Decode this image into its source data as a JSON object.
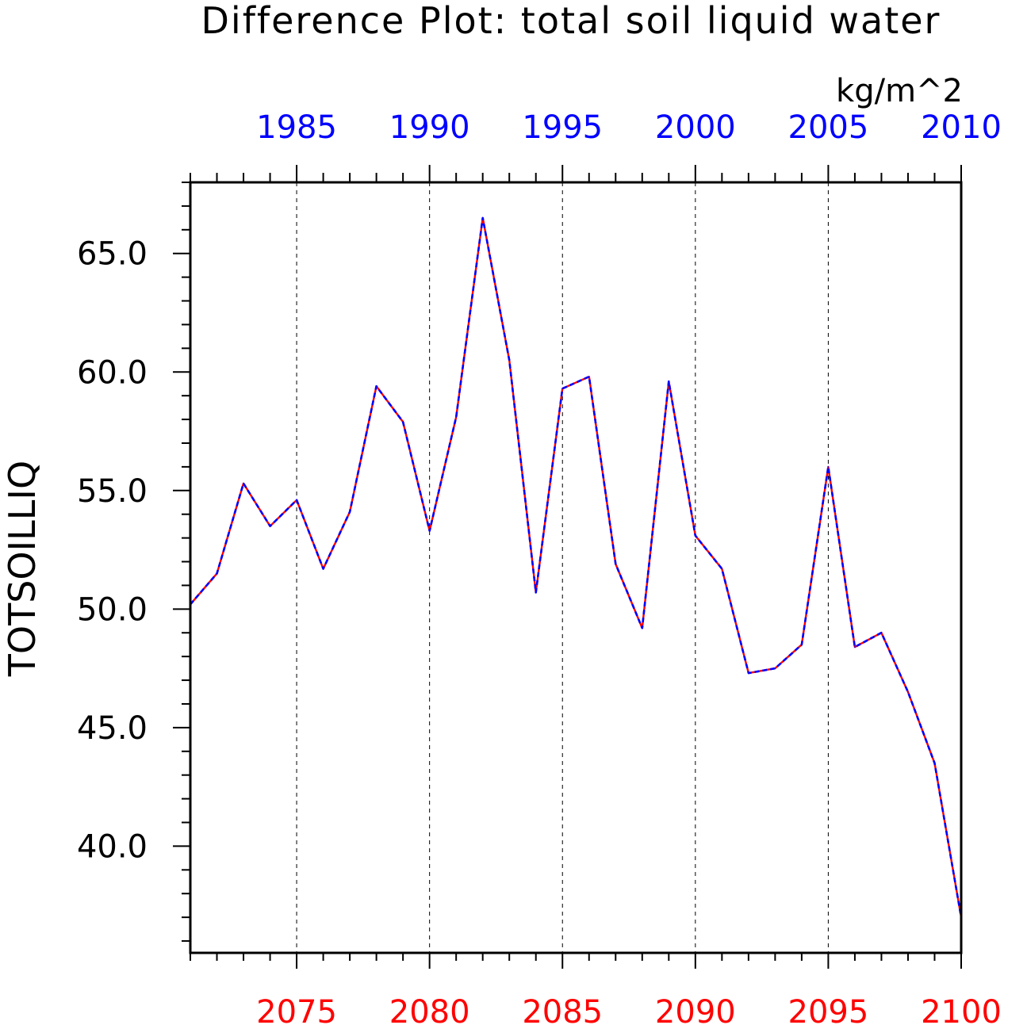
{
  "chart_data": {
    "type": "line",
    "title": "Difference Plot: total soil liquid water",
    "units": "kg/m^2",
    "ylabel": "TOTSOILLIQ",
    "ylim": [
      35.5,
      68
    ],
    "yticks": [
      40,
      45,
      50,
      55,
      60,
      65
    ],
    "ytick_labels": [
      "40.0",
      "45.0",
      "50.0",
      "55.0",
      "60.0",
      "65.0"
    ],
    "x_bottom": {
      "range": [
        2071,
        2100
      ],
      "ticks": [
        2075,
        2080,
        2085,
        2090,
        2095,
        2100
      ],
      "labels": [
        "2075",
        "2080",
        "2085",
        "2090",
        "2095",
        "2100"
      ],
      "color": "#ff0000"
    },
    "x_top": {
      "range": [
        1981,
        2010
      ],
      "ticks": [
        1985,
        1990,
        1995,
        2000,
        2005,
        2010
      ],
      "labels": [
        "1985",
        "1990",
        "1995",
        "2000",
        "2005",
        "2010"
      ],
      "color": "#0000ff"
    },
    "grid": "vertical-dashed",
    "series": [
      {
        "color": "#ff0000",
        "style": "solid",
        "x": [
          2071,
          2072,
          2073,
          2074,
          2075,
          2076,
          2077,
          2078,
          2079,
          2080,
          2081,
          2082,
          2083,
          2084,
          2085,
          2086,
          2087,
          2088,
          2089,
          2090,
          2091,
          2092,
          2093,
          2094,
          2095,
          2096,
          2097,
          2098,
          2099,
          2100
        ],
        "values": [
          50.2,
          51.5,
          55.3,
          53.5,
          54.6,
          51.7,
          54.1,
          59.4,
          57.9,
          53.3,
          58.1,
          66.5,
          60.5,
          50.7,
          59.3,
          59.8,
          51.9,
          49.2,
          59.6,
          53.1,
          51.7,
          47.3,
          47.5,
          48.5,
          56.0,
          48.4,
          49.0,
          46.5,
          43.5,
          37.0
        ]
      },
      {
        "color": "#0000ff",
        "style": "dashed",
        "x": [
          2071,
          2072,
          2073,
          2074,
          2075,
          2076,
          2077,
          2078,
          2079,
          2080,
          2081,
          2082,
          2083,
          2084,
          2085,
          2086,
          2087,
          2088,
          2089,
          2090,
          2091,
          2092,
          2093,
          2094,
          2095,
          2096,
          2097,
          2098,
          2099,
          2100
        ],
        "values": [
          50.2,
          51.5,
          55.3,
          53.5,
          54.6,
          51.7,
          54.1,
          59.4,
          57.9,
          53.3,
          58.1,
          66.5,
          60.5,
          50.7,
          59.3,
          59.8,
          51.9,
          49.2,
          59.6,
          53.1,
          51.7,
          47.3,
          47.5,
          48.5,
          56.0,
          48.4,
          49.0,
          46.5,
          43.5,
          37.0
        ]
      }
    ]
  }
}
